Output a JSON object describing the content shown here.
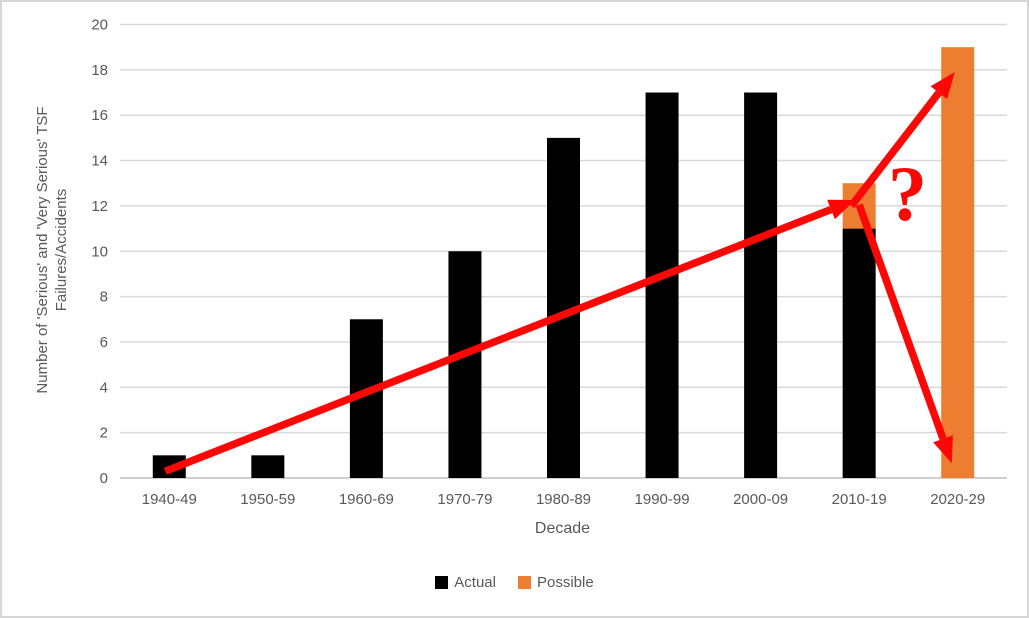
{
  "window": {
    "background": "#FFFFFF",
    "border_color": "#D6D6D6"
  },
  "chart_data": {
    "type": "bar",
    "stacked": true,
    "categories": [
      "1940-49",
      "1950-59",
      "1960-69",
      "1970-79",
      "1980-89",
      "1990-99",
      "2000-09",
      "2010-19",
      "2020-29"
    ],
    "series": [
      {
        "name": "Actual",
        "color": "#000000",
        "values": [
          1,
          1,
          7,
          10,
          15,
          17,
          17,
          11,
          0
        ]
      },
      {
        "name": "Possible",
        "color": "#ED7D31",
        "values": [
          0,
          0,
          0,
          0,
          0,
          0,
          0,
          2,
          19
        ]
      }
    ],
    "title": "",
    "xlabel": "Decade",
    "ylabel_line1": "Number of 'Serious' and 'Very Serious' TSF",
    "ylabel_line2": "Failures/Accidents",
    "ylim": [
      0,
      20
    ],
    "yticks": [
      0,
      2,
      4,
      6,
      8,
      10,
      12,
      14,
      16,
      18,
      20
    ],
    "grid": true,
    "legend_position": "bottom",
    "colors": {
      "grid": "#D9D9D9",
      "axis": "#BFBFBF",
      "text": "#595959",
      "annotation_red": "#FB0706"
    },
    "annotations": {
      "question_mark": {
        "text": "?",
        "x": 7.99,
        "y": 12.55
      },
      "arrows": [
        {
          "name": "actual-trend-arrow",
          "from": {
            "x": 0.46,
            "y": 0.3
          },
          "to": {
            "x": 7.46,
            "y": 12.26
          }
        },
        {
          "name": "possible-rise-arrow",
          "from": {
            "x": 7.42,
            "y": 12.0
          },
          "to": {
            "x": 8.47,
            "y": 17.9
          }
        },
        {
          "name": "possible-fall-arrow",
          "from": {
            "x": 7.5,
            "y": 12.05
          },
          "to": {
            "x": 8.44,
            "y": 0.65
          }
        }
      ]
    }
  }
}
